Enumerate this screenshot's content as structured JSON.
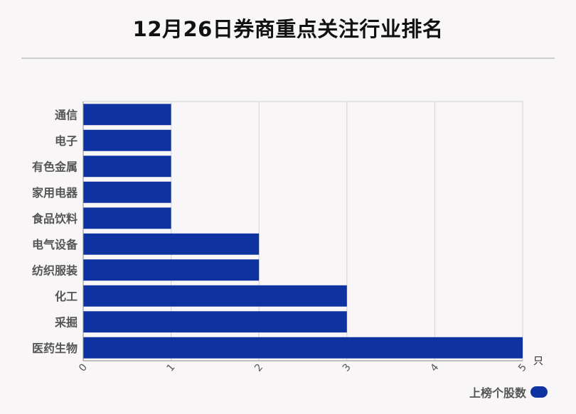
{
  "title": "12月26日券商重点关注行业排名",
  "legend": {
    "label": "上榜个股数",
    "color": "#0e33a1"
  },
  "chart_data": {
    "type": "bar",
    "orientation": "horizontal",
    "categories": [
      "通信",
      "电子",
      "有色金属",
      "家用电器",
      "食品饮料",
      "电气设备",
      "纺织服装",
      "化工",
      "采掘",
      "医药生物"
    ],
    "series": [
      {
        "name": "上榜个股数",
        "values": [
          1,
          1,
          1,
          1,
          1,
          2,
          2,
          3,
          3,
          5
        ]
      }
    ],
    "xlim": [
      0,
      5
    ],
    "xticks": [
      "0",
      "1",
      "2",
      "3",
      "4",
      "5"
    ],
    "unit": "只",
    "grid": true,
    "legend_position": "bottom-right",
    "bar_color": "#0e33a1"
  }
}
